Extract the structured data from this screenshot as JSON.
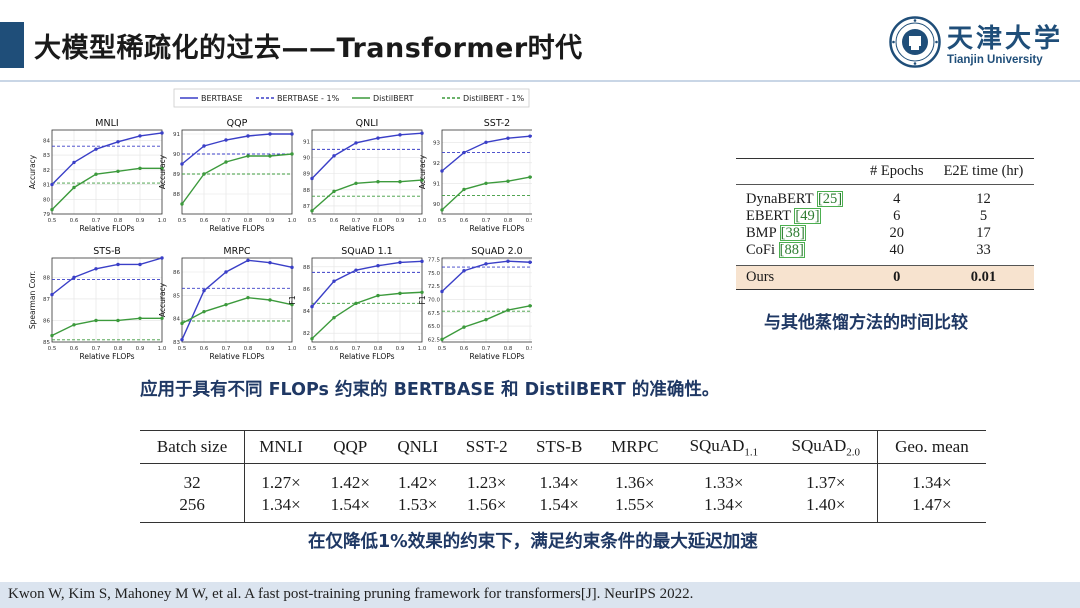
{
  "slide": {
    "title": "大模型稀疏化的过去——Transformer时代",
    "logo": {
      "cn": "天津大学",
      "en": "Tianjin University"
    }
  },
  "figure": {
    "caption": "应用于具有不同 FLOPs 约束的 BERTBASE 和 DistilBERT 的准确性。",
    "legend": [
      "BERTBASE",
      "BERTBASE - 1%",
      "DistilBERT",
      "DistilBERT - 1%"
    ],
    "colors": {
      "bert": "#3a3fc7",
      "distil": "#3c9a3c"
    }
  },
  "chart_data": [
    {
      "type": "line",
      "title": "MNLI",
      "xlabel": "Relative FLOPs",
      "ylabel": "Accuracy",
      "x": [
        0.5,
        0.6,
        0.7,
        0.8,
        0.9,
        1.0
      ],
      "xlim": [
        0.5,
        1.0
      ],
      "ylim": [
        79,
        84.7
      ],
      "xticks": [
        "0.5",
        "0.6",
        "0.7",
        "0.8",
        "0.9",
        "1.0"
      ],
      "yticks": [
        "79",
        "80",
        "81",
        "82",
        "83",
        "84"
      ],
      "series": [
        {
          "name": "BERTBASE",
          "values": [
            81.0,
            82.5,
            83.4,
            83.9,
            84.3,
            84.5
          ]
        },
        {
          "name": "DistilBERT",
          "values": [
            79.3,
            80.8,
            81.7,
            81.9,
            82.1,
            82.1
          ]
        }
      ],
      "ref_lines": [
        {
          "name": "BERTBASE - 1%",
          "value": 83.6
        },
        {
          "name": "DistilBERT - 1%",
          "value": 81.1
        }
      ]
    },
    {
      "type": "line",
      "title": "QQP",
      "xlabel": "Relative FLOPs",
      "ylabel": "Accuracy",
      "x": [
        0.5,
        0.6,
        0.7,
        0.8,
        0.9,
        1.0
      ],
      "xlim": [
        0.5,
        1.0
      ],
      "ylim": [
        87,
        91.2
      ],
      "xticks": [
        "0.5",
        "0.6",
        "0.7",
        "0.8",
        "0.9",
        "1.0"
      ],
      "yticks": [
        "88",
        "89",
        "90",
        "91"
      ],
      "series": [
        {
          "name": "BERTBASE",
          "values": [
            89.5,
            90.4,
            90.7,
            90.9,
            91.0,
            91.0
          ]
        },
        {
          "name": "DistilBERT",
          "values": [
            87.5,
            89.0,
            89.6,
            89.9,
            89.9,
            90.0
          ]
        }
      ],
      "ref_lines": [
        {
          "name": "BERTBASE - 1%",
          "value": 90.0
        },
        {
          "name": "DistilBERT - 1%",
          "value": 89.0
        }
      ]
    },
    {
      "type": "line",
      "title": "QNLI",
      "xlabel": "Relative FLOPs",
      "ylabel": "",
      "x": [
        0.5,
        0.6,
        0.7,
        0.8,
        0.9,
        1.0
      ],
      "xlim": [
        0.5,
        1.0
      ],
      "ylim": [
        86.5,
        91.7
      ],
      "xticks": [
        "0.5",
        "0.6",
        "0.7",
        "0.8",
        "0.9",
        "1.0"
      ],
      "yticks": [
        "87",
        "88",
        "89",
        "90",
        "91"
      ],
      "series": [
        {
          "name": "BERTBASE",
          "values": [
            88.7,
            90.1,
            90.9,
            91.2,
            91.4,
            91.5
          ]
        },
        {
          "name": "DistilBERT",
          "values": [
            86.7,
            87.9,
            88.4,
            88.5,
            88.5,
            88.6
          ]
        }
      ],
      "ref_lines": [
        {
          "name": "BERTBASE - 1%",
          "value": 90.5
        },
        {
          "name": "DistilBERT - 1%",
          "value": 87.6
        }
      ]
    },
    {
      "type": "line",
      "title": "SST-2",
      "xlabel": "Relative FLOPs",
      "ylabel": "Accuracy",
      "x": [
        0.5,
        0.6,
        0.7,
        0.8,
        0.9,
        1.0
      ],
      "xlim": [
        0.5,
        1.0
      ],
      "ylim": [
        89.5,
        93.6
      ],
      "xticks": [
        "0.5",
        "0.6",
        "0.7",
        "0.8",
        "0.9",
        "1.0"
      ],
      "yticks": [
        "90",
        "91",
        "92",
        "93"
      ],
      "series": [
        {
          "name": "BERTBASE",
          "values": [
            91.6,
            92.5,
            93.0,
            93.2,
            93.3,
            93.5
          ]
        },
        {
          "name": "DistilBERT",
          "values": [
            89.7,
            90.7,
            91.0,
            91.1,
            91.3,
            91.4
          ]
        }
      ],
      "ref_lines": [
        {
          "name": "BERTBASE - 1%",
          "value": 92.5
        },
        {
          "name": "DistilBERT - 1%",
          "value": 90.4
        }
      ]
    },
    {
      "type": "line",
      "title": "STS-B",
      "xlabel": "Relative FLOPs",
      "ylabel": "Spearman Corr.",
      "x": [
        0.5,
        0.6,
        0.7,
        0.8,
        0.9,
        1.0
      ],
      "xlim": [
        0.5,
        1.0
      ],
      "ylim": [
        85.0,
        88.9
      ],
      "xticks": [
        "0.5",
        "0.6",
        "0.7",
        "0.8",
        "0.9",
        "1.0"
      ],
      "yticks": [
        "85",
        "86",
        "87",
        "88"
      ],
      "series": [
        {
          "name": "BERTBASE",
          "values": [
            87.2,
            88.0,
            88.4,
            88.6,
            88.6,
            88.9
          ]
        },
        {
          "name": "DistilBERT",
          "values": [
            85.3,
            85.8,
            86.0,
            86.0,
            86.1,
            86.1
          ]
        }
      ],
      "ref_lines": [
        {
          "name": "BERTBASE - 1%",
          "value": 87.9
        },
        {
          "name": "DistilBERT - 1%",
          "value": 85.1
        }
      ]
    },
    {
      "type": "line",
      "title": "MRPC",
      "xlabel": "Relative FLOPs",
      "ylabel": "Accuracy",
      "x": [
        0.5,
        0.6,
        0.7,
        0.8,
        0.9,
        1.0
      ],
      "xlim": [
        0.5,
        1.0
      ],
      "ylim": [
        83,
        86.6
      ],
      "xticks": [
        "0.5",
        "0.6",
        "0.7",
        "0.8",
        "0.9",
        "1.0"
      ],
      "yticks": [
        "83",
        "84",
        "85",
        "86"
      ],
      "series": [
        {
          "name": "BERTBASE",
          "values": [
            83.1,
            85.2,
            86.0,
            86.5,
            86.4,
            86.2
          ]
        },
        {
          "name": "DistilBERT",
          "values": [
            83.8,
            84.3,
            84.6,
            84.9,
            84.8,
            84.6
          ]
        }
      ],
      "ref_lines": [
        {
          "name": "BERTBASE - 1%",
          "value": 85.3
        },
        {
          "name": "DistilBERT - 1%",
          "value": 83.9
        }
      ]
    },
    {
      "type": "line",
      "title": "SQuAD 1.1",
      "xlabel": "Relative FLOPs",
      "ylabel": "F1",
      "x": [
        0.5,
        0.6,
        0.7,
        0.8,
        0.9,
        1.0
      ],
      "xlim": [
        0.5,
        1.0
      ],
      "ylim": [
        81.2,
        88.8
      ],
      "xticks": [
        "0.5",
        "0.6",
        "0.7",
        "0.8",
        "0.9",
        "1.0"
      ],
      "yticks": [
        "82",
        "84",
        "86",
        "88"
      ],
      "series": [
        {
          "name": "BERTBASE",
          "values": [
            84.4,
            86.7,
            87.7,
            88.1,
            88.4,
            88.5
          ]
        },
        {
          "name": "DistilBERT",
          "values": [
            81.5,
            83.4,
            84.7,
            85.4,
            85.6,
            85.7
          ]
        }
      ],
      "ref_lines": [
        {
          "name": "BERTBASE - 1%",
          "value": 87.5
        },
        {
          "name": "DistilBERT - 1%",
          "value": 84.7
        }
      ]
    },
    {
      "type": "line",
      "title": "SQuAD 2.0",
      "xlabel": "Relative FLOPs",
      "ylabel": "F1",
      "x": [
        0.5,
        0.6,
        0.7,
        0.8,
        0.9,
        1.0
      ],
      "xlim": [
        0.5,
        1.0
      ],
      "ylim": [
        62.0,
        77.8
      ],
      "xticks": [
        "0.5",
        "0.6",
        "0.7",
        "0.8",
        "0.9",
        "1.0"
      ],
      "yticks": [
        "62.5",
        "65.0",
        "67.5",
        "70.0",
        "72.5",
        "75.0",
        "77.5"
      ],
      "series": [
        {
          "name": "BERTBASE",
          "values": [
            71.5,
            75.4,
            76.7,
            77.2,
            77.0,
            77.0
          ]
        },
        {
          "name": "DistilBERT",
          "values": [
            62.5,
            64.8,
            66.2,
            68.0,
            68.8,
            68.8
          ]
        }
      ],
      "ref_lines": [
        {
          "name": "BERTBASE - 1%",
          "value": 76.1
        },
        {
          "name": "DistilBERT - 1%",
          "value": 67.8
        }
      ]
    }
  ],
  "epochs_table": {
    "headers": [
      "",
      "# Epochs",
      "E2E time (hr)"
    ],
    "rows": [
      {
        "method": "DynaBERT",
        "ref": "25",
        "epochs": "4",
        "time": "12"
      },
      {
        "method": "EBERT",
        "ref": "49",
        "epochs": "6",
        "time": "5"
      },
      {
        "method": "BMP",
        "ref": "38",
        "epochs": "20",
        "time": "17"
      },
      {
        "method": "CoFi",
        "ref": "88",
        "epochs": "40",
        "time": "33"
      }
    ],
    "ours": {
      "method": "Ours",
      "epochs": "0",
      "time": "0.01"
    },
    "caption": "与其他蒸馏方法的时间比较"
  },
  "speedup_table": {
    "header_first": "Batch size",
    "headers": [
      "MNLI",
      "QQP",
      "QNLI",
      "SST-2",
      "STS-B",
      "MRPC"
    ],
    "squad1": {
      "base": "SQuAD",
      "sub": "1.1"
    },
    "squad2": {
      "base": "SQuAD",
      "sub": "2.0"
    },
    "header_last": "Geo. mean",
    "rows": [
      {
        "batch": "32",
        "vals": [
          "1.27×",
          "1.42×",
          "1.42×",
          "1.23×",
          "1.34×",
          "1.36×",
          "1.33×",
          "1.37×"
        ],
        "geo": "1.34×"
      },
      {
        "batch": "256",
        "vals": [
          "1.34×",
          "1.54×",
          "1.53×",
          "1.56×",
          "1.54×",
          "1.55×",
          "1.34×",
          "1.40×"
        ],
        "geo": "1.47×"
      }
    ],
    "caption": "在仅降低1%效果的约束下，满足约束条件的最大延迟加速"
  },
  "footer": {
    "citation": "Kwon W, Kim S, Mahoney M W, et al. A fast post-training pruning framework for transformers[J]. NeurIPS 2022."
  }
}
